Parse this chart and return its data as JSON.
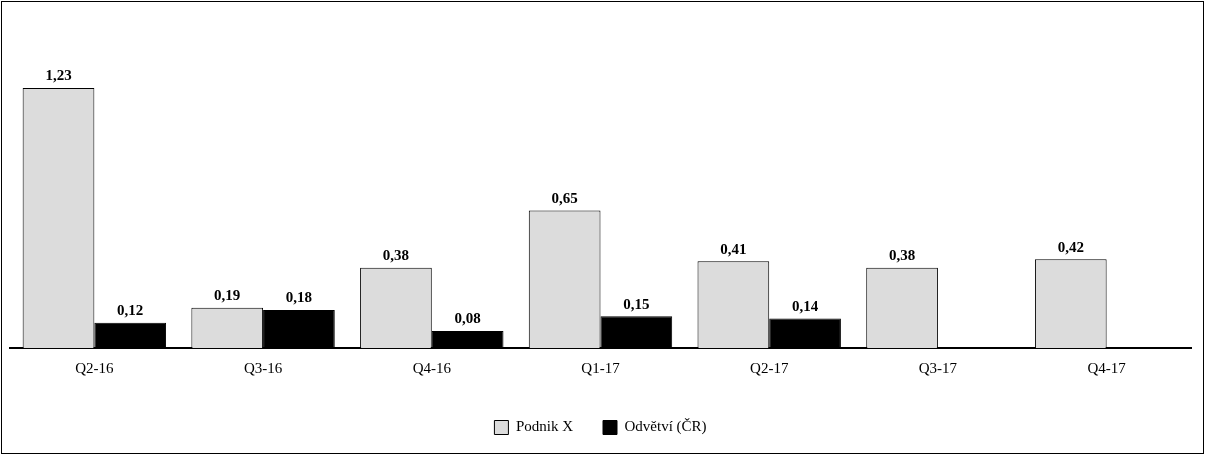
{
  "chart_data": {
    "type": "bar",
    "categories": [
      "Q2-16",
      "Q3-16",
      "Q4-16",
      "Q1-17",
      "Q2-17",
      "Q3-17",
      "Q4-17"
    ],
    "series": [
      {
        "name": "Podnik X",
        "color": "#dcdcdc",
        "values": [
          1.23,
          0.19,
          0.38,
          0.65,
          0.41,
          0.38,
          0.42
        ],
        "value_labels": [
          "1,23",
          "0,19",
          "0,38",
          "0,65",
          "0,41",
          "0,38",
          "0,42"
        ]
      },
      {
        "name": "Odvětví (ČR)",
        "color": "#000000",
        "values": [
          0.12,
          0.18,
          0.08,
          0.15,
          0.14,
          null,
          null
        ],
        "value_labels": [
          "0,12",
          "0,18",
          "0,08",
          "0,15",
          "0,14",
          null,
          null
        ]
      }
    ],
    "legend": "bottom",
    "grid": false
  }
}
